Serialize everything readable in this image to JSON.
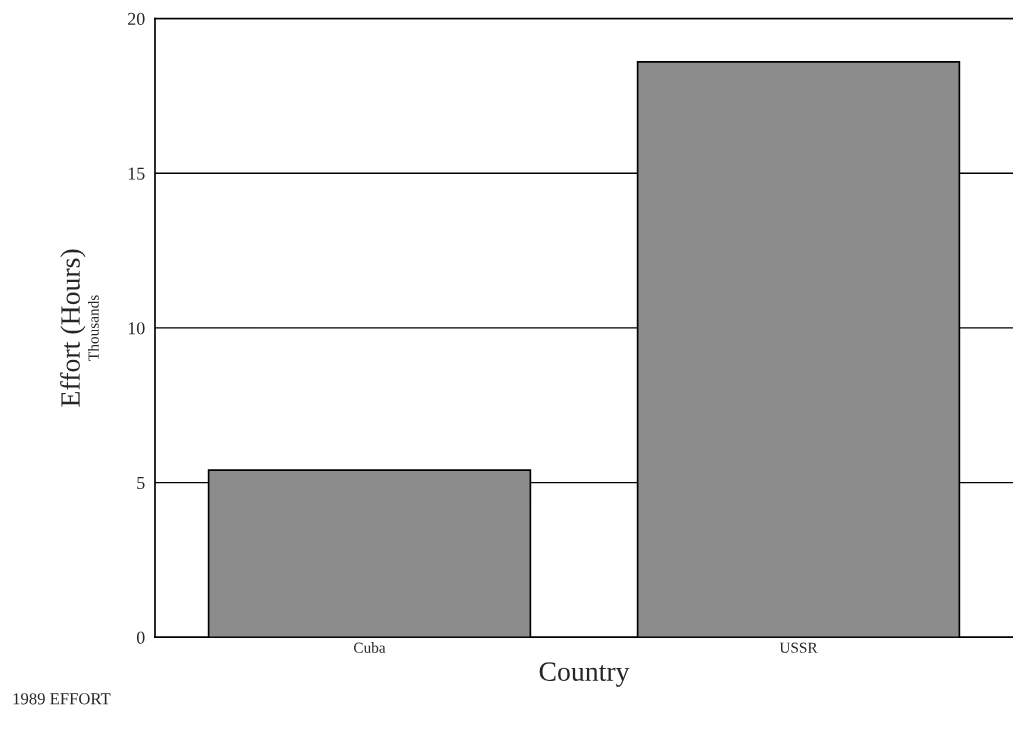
{
  "chart_data": {
    "type": "bar",
    "categories": [
      "Cuba",
      "USSR"
    ],
    "values": [
      5.4,
      18.6
    ],
    "color": "#8c8c8c",
    "xlabel": "Country",
    "ylabel": "Effort (Hours)",
    "ylim": [
      0,
      20
    ],
    "yticks": [
      0,
      5,
      10,
      15,
      20
    ],
    "grid": "y",
    "annotations": [
      "Thousands",
      "1989 EFFORT"
    ]
  }
}
